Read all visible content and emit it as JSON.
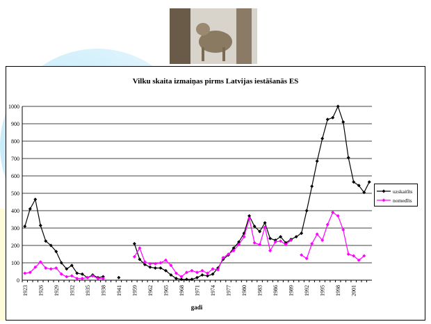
{
  "chart_data": {
    "type": "line",
    "title": "Vilku skaita izmaiņas pirms Latvijas iestāšanās ES",
    "x_label": "gadi",
    "categories": [
      "1923",
      null,
      null,
      "1926",
      null,
      null,
      "1929",
      null,
      null,
      "1932",
      null,
      null,
      "1935",
      null,
      null,
      "1938",
      null,
      null,
      "1941",
      null,
      null,
      "1959",
      null,
      null,
      "1962",
      null,
      null,
      "1965",
      null,
      null,
      "1968",
      null,
      null,
      "1971",
      null,
      null,
      "1974",
      null,
      null,
      "1977",
      null,
      null,
      "1980",
      null,
      null,
      "1983",
      null,
      null,
      "1986",
      null,
      null,
      "1989",
      null,
      null,
      "1992",
      null,
      null,
      "1995",
      null,
      null,
      "1998",
      null,
      null,
      "2001",
      null,
      null,
      null
    ],
    "series": [
      {
        "name": "uzskaitīts",
        "color": "#000000",
        "values": [
          310,
          410,
          465,
          315,
          225,
          200,
          165,
          100,
          65,
          85,
          40,
          35,
          15,
          30,
          15,
          20,
          null,
          null,
          15,
          null,
          null,
          210,
          120,
          90,
          75,
          70,
          70,
          55,
          30,
          10,
          5,
          5,
          5,
          15,
          30,
          25,
          35,
          70,
          120,
          145,
          185,
          220,
          270,
          370,
          310,
          280,
          330,
          240,
          230,
          250,
          215,
          235,
          250,
          270,
          400,
          540,
          685,
          815,
          925,
          935,
          1000,
          910,
          705,
          565,
          545,
          505,
          565
        ]
      },
      {
        "name": "nomedīts",
        "color": "#ff00ff",
        "values": [
          40,
          45,
          75,
          105,
          70,
          65,
          70,
          35,
          20,
          25,
          10,
          10,
          15,
          25,
          10,
          10,
          null,
          null,
          null,
          null,
          null,
          135,
          185,
          105,
          95,
          95,
          100,
          115,
          85,
          40,
          20,
          45,
          55,
          45,
          55,
          40,
          65,
          60,
          130,
          150,
          170,
          205,
          250,
          355,
          215,
          205,
          305,
          170,
          220,
          225,
          205,
          230,
          null,
          145,
          125,
          210,
          265,
          230,
          320,
          390,
          370,
          290,
          150,
          140,
          115,
          140,
          null
        ]
      }
    ],
    "ylim": [
      0,
      1000
    ],
    "yticks": [
      0,
      100,
      200,
      300,
      400,
      500,
      600,
      700,
      800,
      900,
      1000
    ],
    "grid": true,
    "legend": "right"
  }
}
